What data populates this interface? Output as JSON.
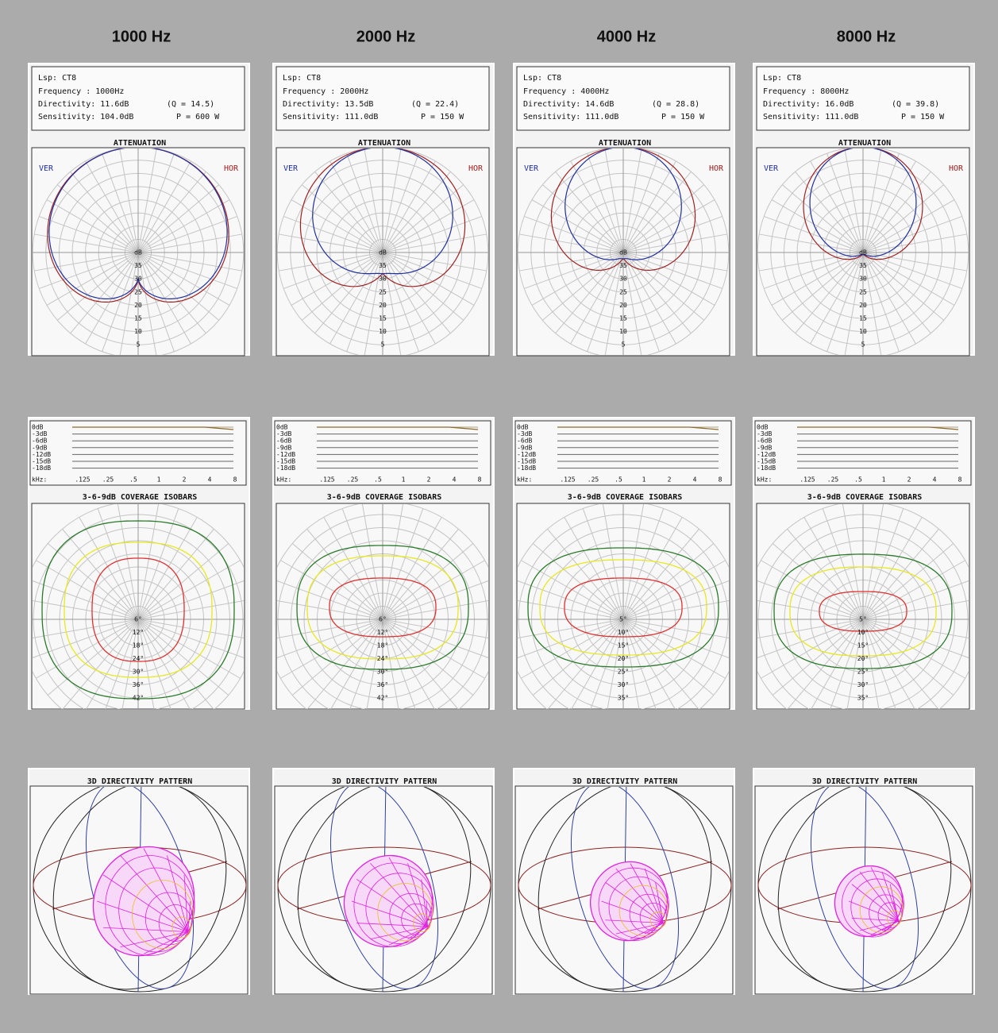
{
  "columns": [
    {
      "heading": "1000 Hz",
      "info": {
        "lsp": "Lsp: CT8",
        "frequency": "Frequency  :  1000Hz",
        "directivity": "Directivity:  11.6dB",
        "q": "(Q = 14.5)",
        "sensitivity": "Sensitivity: 104.0dB",
        "power": "P =  600 W"
      },
      "attenuation": {
        "title": "ATTENUATION",
        "ver": "VER",
        "hor": "HOR",
        "rings": [
          "dB",
          "35",
          "30",
          "25",
          "20",
          "15",
          "10",
          "5"
        ]
      },
      "response": {
        "db_labels": [
          "0dB",
          "-3dB",
          "-6dB",
          "-9dB",
          "-12dB",
          "-15dB",
          "-18dB"
        ],
        "khz_label": "kHz:",
        "freqs": [
          ".125",
          ".25",
          ".5",
          "1",
          "2",
          "4",
          "8"
        ]
      },
      "isobars": {
        "title": "3-6-9dB COVERAGE ISOBARS",
        "rings": [
          "6°",
          "12°",
          "18°",
          "24°",
          "30°",
          "36°",
          "42°"
        ]
      },
      "pattern": {
        "title": "3D DIRECTIVITY PATTERN"
      }
    },
    {
      "heading": "2000 Hz",
      "info": {
        "lsp": "Lsp: CT8",
        "frequency": "Frequency  :  2000Hz",
        "directivity": "Directivity:  13.5dB",
        "q": "(Q = 22.4)",
        "sensitivity": "Sensitivity: 111.0dB",
        "power": "P =  150 W"
      },
      "attenuation": {
        "title": "ATTENUATION",
        "ver": "VER",
        "hor": "HOR",
        "rings": [
          "dB",
          "35",
          "30",
          "25",
          "20",
          "15",
          "10",
          "5"
        ]
      },
      "response": {
        "db_labels": [
          "0dB",
          "-3dB",
          "-6dB",
          "-9dB",
          "-12dB",
          "-15dB",
          "-18dB"
        ],
        "khz_label": "kHz:",
        "freqs": [
          ".125",
          ".25",
          ".5",
          "1",
          "2",
          "4",
          "8"
        ]
      },
      "isobars": {
        "title": "3-6-9dB COVERAGE ISOBARS",
        "rings": [
          "6°",
          "12°",
          "18°",
          "24°",
          "30°",
          "36°",
          "42°"
        ]
      },
      "pattern": {
        "title": "3D DIRECTIVITY PATTERN"
      }
    },
    {
      "heading": "4000 Hz",
      "info": {
        "lsp": "Lsp: CT8",
        "frequency": "Frequency  :  4000Hz",
        "directivity": "Directivity:  14.6dB",
        "q": "(Q = 28.8)",
        "sensitivity": "Sensitivity: 111.0dB",
        "power": "P =  150 W"
      },
      "attenuation": {
        "title": "ATTENUATION",
        "ver": "VER",
        "hor": "HOR",
        "rings": [
          "dB",
          "35",
          "30",
          "25",
          "20",
          "15",
          "10",
          "5"
        ]
      },
      "response": {
        "db_labels": [
          "0dB",
          "-3dB",
          "-6dB",
          "-9dB",
          "-12dB",
          "-15dB",
          "-18dB"
        ],
        "khz_label": "kHz:",
        "freqs": [
          ".125",
          ".25",
          ".5",
          "1",
          "2",
          "4",
          "8"
        ]
      },
      "isobars": {
        "title": "3-6-9dB COVERAGE ISOBARS",
        "rings": [
          "5°",
          "10°",
          "15°",
          "20°",
          "25°",
          "30°",
          "35°"
        ]
      },
      "pattern": {
        "title": "3D DIRECTIVITY PATTERN"
      }
    },
    {
      "heading": "8000 Hz",
      "info": {
        "lsp": "Lsp: CT8",
        "frequency": "Frequency  :  8000Hz",
        "directivity": "Directivity:  16.0dB",
        "q": "(Q = 39.8)",
        "sensitivity": "Sensitivity: 111.0dB",
        "power": "P =  150 W"
      },
      "attenuation": {
        "title": "ATTENUATION",
        "ver": "VER",
        "hor": "HOR",
        "rings": [
          "dB",
          "35",
          "30",
          "25",
          "20",
          "15",
          "10",
          "5"
        ]
      },
      "response": {
        "db_labels": [
          "0dB",
          "-3dB",
          "-6dB",
          "-9dB",
          "-12dB",
          "-15dB",
          "-18dB"
        ],
        "khz_label": "kHz:",
        "freqs": [
          ".125",
          ".25",
          ".5",
          "1",
          "2",
          "4",
          "8"
        ]
      },
      "isobars": {
        "title": "3-6-9dB COVERAGE ISOBARS",
        "rings": [
          "5°",
          "10°",
          "15°",
          "20°",
          "25°",
          "30°",
          "35°"
        ]
      },
      "pattern": {
        "title": "3D DIRECTIVITY PATTERN"
      }
    }
  ]
}
